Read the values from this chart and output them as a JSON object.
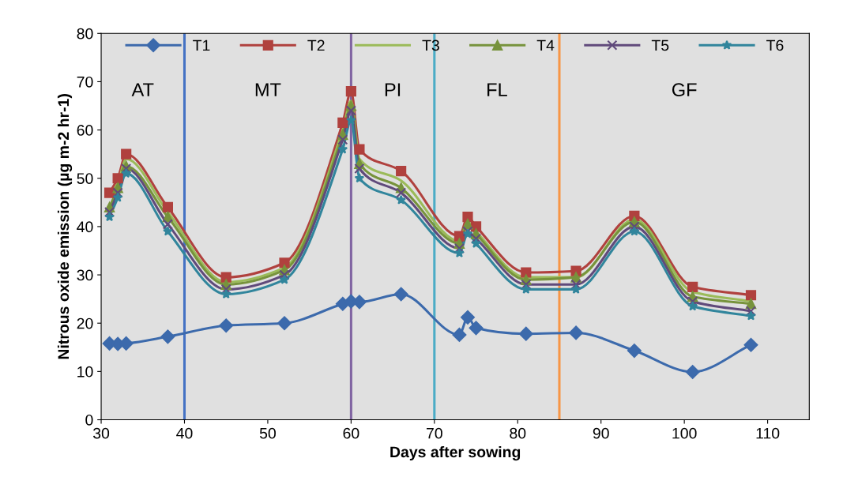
{
  "chart_data": {
    "type": "line",
    "xlabel": "Days after sowing",
    "ylabel": "Nitrous oxide emission (µg m-2 hr-1)",
    "x": [
      31,
      32,
      33,
      38,
      45,
      52,
      59,
      60,
      61,
      66,
      73,
      74,
      75,
      81,
      87,
      94,
      101,
      108
    ],
    "xlim": [
      30,
      115
    ],
    "xticks": [
      30,
      40,
      50,
      60,
      70,
      80,
      90,
      100,
      110
    ],
    "ylim": [
      0,
      80
    ],
    "yticks": [
      0,
      10,
      20,
      30,
      40,
      50,
      60,
      70,
      80
    ],
    "grid": false,
    "legend": "top",
    "series": [
      {
        "name": "T1",
        "color": "#3c6aac",
        "marker": "diamond",
        "values": [
          15.8,
          15.7,
          15.8,
          17.2,
          19.5,
          20,
          24,
          24.5,
          24.4,
          26,
          17.6,
          21.2,
          19,
          17.8,
          18,
          14.3,
          9.9,
          15.5
        ]
      },
      {
        "name": "T2",
        "color": "#b0413e",
        "marker": "square",
        "values": [
          47,
          50,
          55,
          44,
          29.5,
          32.5,
          61.5,
          68,
          56,
          51.5,
          38,
          42,
          40,
          30.5,
          30.8,
          42.2,
          27.5,
          25.8
        ]
      },
      {
        "name": "T3",
        "color": "#9bbb59",
        "marker": "none",
        "values": [
          46.5,
          49,
          54,
          43,
          28.5,
          31.5,
          60,
          66,
          54,
          49.5,
          37,
          41,
          39,
          29.5,
          29.5,
          41.5,
          26.5,
          24.5
        ]
      },
      {
        "name": "T4",
        "color": "#77933c",
        "marker": "triangle",
        "values": [
          44,
          48,
          52.5,
          42,
          28,
          31,
          59,
          65,
          53,
          48,
          36.5,
          40.5,
          38.5,
          29,
          29.5,
          41,
          25.5,
          24
        ]
      },
      {
        "name": "T5",
        "color": "#604a7b",
        "marker": "cross",
        "values": [
          43,
          47,
          52,
          40.5,
          27,
          30,
          58,
          64,
          52,
          47,
          35.5,
          39,
          37.5,
          28,
          28,
          40,
          24.5,
          22.5
        ]
      },
      {
        "name": "T6",
        "color": "#31859c",
        "marker": "star",
        "values": [
          42,
          46,
          51,
          39,
          26,
          29,
          56,
          62,
          50,
          45.5,
          34.5,
          38.5,
          36.5,
          27,
          27,
          39,
          23.5,
          21.5
        ]
      }
    ],
    "ref_lines": [
      {
        "axis": "x",
        "value": 40,
        "color": "#4472c4"
      },
      {
        "axis": "x",
        "value": 60,
        "color": "#8064a2"
      },
      {
        "axis": "x",
        "value": 70,
        "color": "#4bacc6"
      },
      {
        "axis": "x",
        "value": 85,
        "color": "#f79646"
      }
    ],
    "annotations": [
      "AT",
      "MT",
      "PI",
      "FL",
      "GF"
    ]
  }
}
